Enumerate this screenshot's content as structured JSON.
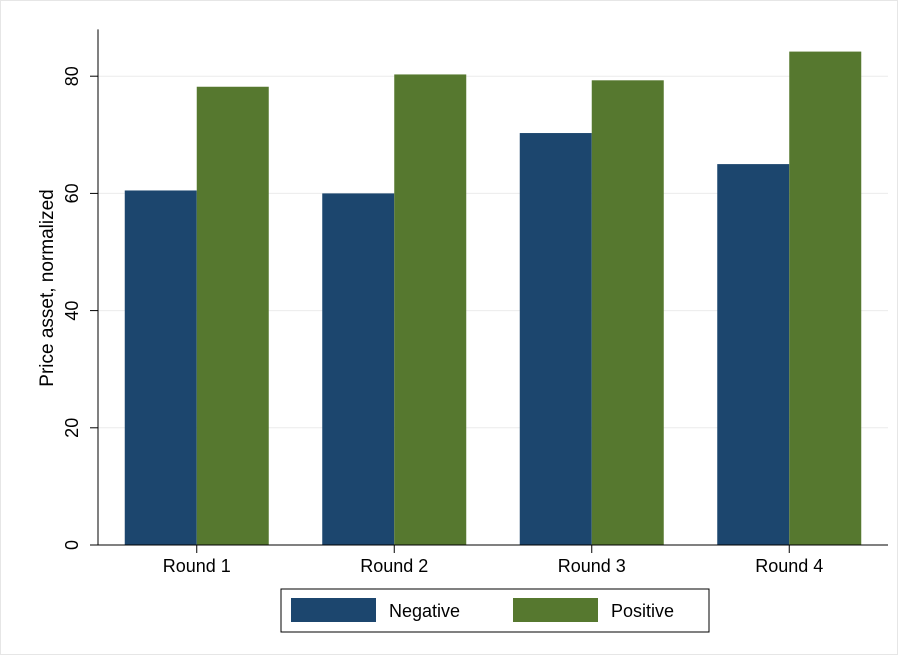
{
  "chart_data": {
    "type": "bar",
    "categories": [
      "Round 1",
      "Round 2",
      "Round 3",
      "Round 4"
    ],
    "series": [
      {
        "name": "Negative",
        "color": "#1c466e",
        "values": [
          60.5,
          60.0,
          70.3,
          65.0
        ]
      },
      {
        "name": "Positive",
        "color": "#56782f",
        "values": [
          78.2,
          80.3,
          79.3,
          84.2
        ]
      }
    ],
    "ylabel": "Price asset, normalized",
    "ylim": [
      0,
      88
    ],
    "yticks": [
      0,
      20,
      40,
      60,
      80
    ],
    "ytick_labels": [
      "0",
      "20",
      "40",
      "60",
      "80"
    ],
    "grid": true,
    "legend_position": "bottom"
  }
}
